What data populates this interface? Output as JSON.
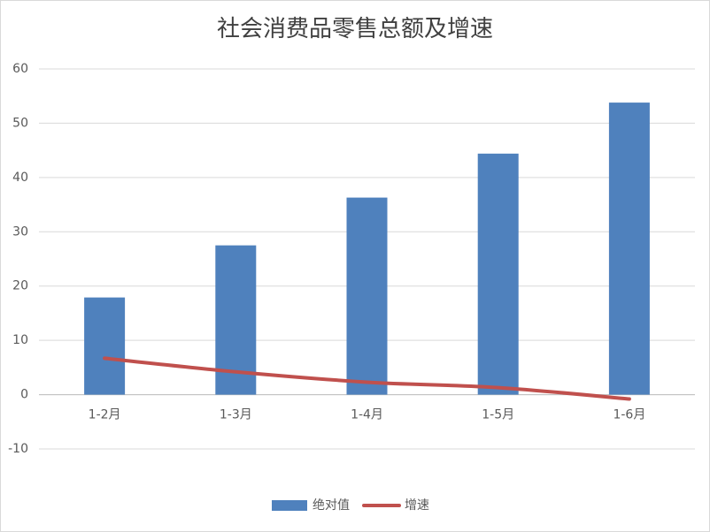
{
  "chart_data": {
    "type": "bar",
    "title": "社会消费品零售总额及增速",
    "categories": [
      "1-2月",
      "1-3月",
      "1-4月",
      "1-5月",
      "1-6月"
    ],
    "series": [
      {
        "name": "绝对值",
        "type": "bar",
        "color": "#4f81bd",
        "values": [
          17.9,
          27.5,
          36.3,
          44.4,
          53.8
        ]
      },
      {
        "name": "增速",
        "type": "line",
        "color": "#c0504d",
        "values": [
          6.7,
          4.2,
          2.3,
          1.3,
          -0.8
        ]
      }
    ],
    "ylim": [
      -10,
      60
    ],
    "yticks": [
      -10,
      0,
      10,
      20,
      30,
      40,
      50,
      60
    ],
    "grid": true,
    "legend": "bottom"
  }
}
